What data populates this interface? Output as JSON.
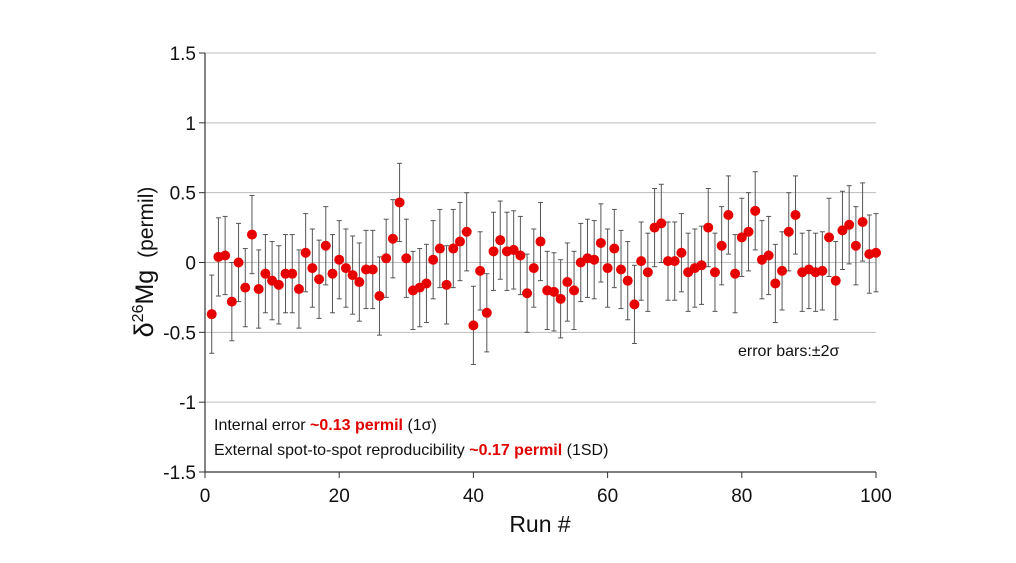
{
  "chart_data": {
    "type": "scatter",
    "xlabel": "Run #",
    "ylabel_prefix": "δ",
    "ylabel_sup": "26",
    "ylabel_main": "Mg",
    "ylabel_unit": "(permil)",
    "xlim": [
      0,
      100
    ],
    "ylim": [
      -1.5,
      1.5
    ],
    "xticks": [
      0,
      20,
      40,
      60,
      80,
      100
    ],
    "xtick_labels": [
      "0",
      "20",
      "40",
      "60",
      "80",
      "100"
    ],
    "yticks": [
      1.5,
      1,
      0.5,
      0,
      -0.5,
      -1,
      -1.5
    ],
    "ytick_labels": [
      "1.5",
      "1",
      "0.5",
      "0",
      "-0.5",
      "-1",
      "-1.5"
    ],
    "grid": "horizontal",
    "marker_color": "#e60000",
    "errorbar_color": "#555555",
    "error_label": "error bars:±2σ",
    "x": [
      1,
      2,
      3,
      4,
      5,
      6,
      7,
      8,
      9,
      10,
      11,
      12,
      13,
      14,
      15,
      16,
      17,
      18,
      19,
      20,
      21,
      22,
      23,
      24,
      25,
      26,
      27,
      28,
      29,
      30,
      31,
      32,
      33,
      34,
      35,
      36,
      37,
      38,
      39,
      40,
      41,
      42,
      43,
      44,
      45,
      46,
      47,
      48,
      49,
      50,
      51,
      52,
      53,
      54,
      55,
      56,
      57,
      58,
      59,
      60,
      61,
      62,
      63,
      64,
      65,
      66,
      67,
      68,
      69,
      70,
      71,
      72,
      73,
      74,
      75,
      76,
      77,
      78,
      79,
      80,
      81,
      82,
      83,
      84,
      85,
      86,
      87,
      88,
      89,
      90,
      91,
      92,
      93,
      94,
      95,
      96,
      97,
      98,
      99,
      100
    ],
    "y": [
      -0.37,
      0.04,
      0.05,
      -0.28,
      0.0,
      -0.18,
      0.2,
      -0.19,
      -0.08,
      -0.13,
      -0.16,
      -0.08,
      -0.08,
      -0.19,
      0.07,
      -0.04,
      -0.12,
      0.12,
      -0.08,
      0.02,
      -0.04,
      -0.09,
      -0.14,
      -0.05,
      -0.05,
      -0.24,
      0.03,
      0.17,
      0.43,
      0.03,
      -0.2,
      -0.18,
      -0.15,
      0.02,
      0.1,
      -0.16,
      0.1,
      0.15,
      0.22,
      -0.45,
      -0.06,
      -0.36,
      0.08,
      0.16,
      0.08,
      0.09,
      0.05,
      -0.22,
      -0.04,
      0.15,
      -0.2,
      -0.21,
      -0.26,
      -0.14,
      -0.2,
      0.0,
      0.03,
      0.02,
      0.14,
      -0.04,
      0.1,
      -0.05,
      -0.13,
      -0.3,
      0.01,
      -0.07,
      0.25,
      0.28,
      0.01,
      0.01,
      0.07,
      -0.07,
      -0.04,
      -0.02,
      0.25,
      -0.07,
      0.12,
      0.34,
      -0.08,
      0.18,
      0.22,
      0.37,
      0.02,
      0.05,
      -0.15,
      -0.06,
      0.22,
      0.34,
      -0.07,
      -0.05,
      -0.07,
      -0.06,
      0.18,
      -0.13,
      0.23,
      0.27,
      0.12,
      0.29,
      0.06,
      0.07
    ],
    "yerr": 0.28
  },
  "annotations": {
    "line1_a": "Internal error ",
    "line1_b": "~0.13 permil",
    "line1_c": " (1σ)",
    "line2_a": "External spot-to-spot reproducibility ",
    "line2_b": "~0.17 permil",
    "line2_c": " (1SD)"
  }
}
